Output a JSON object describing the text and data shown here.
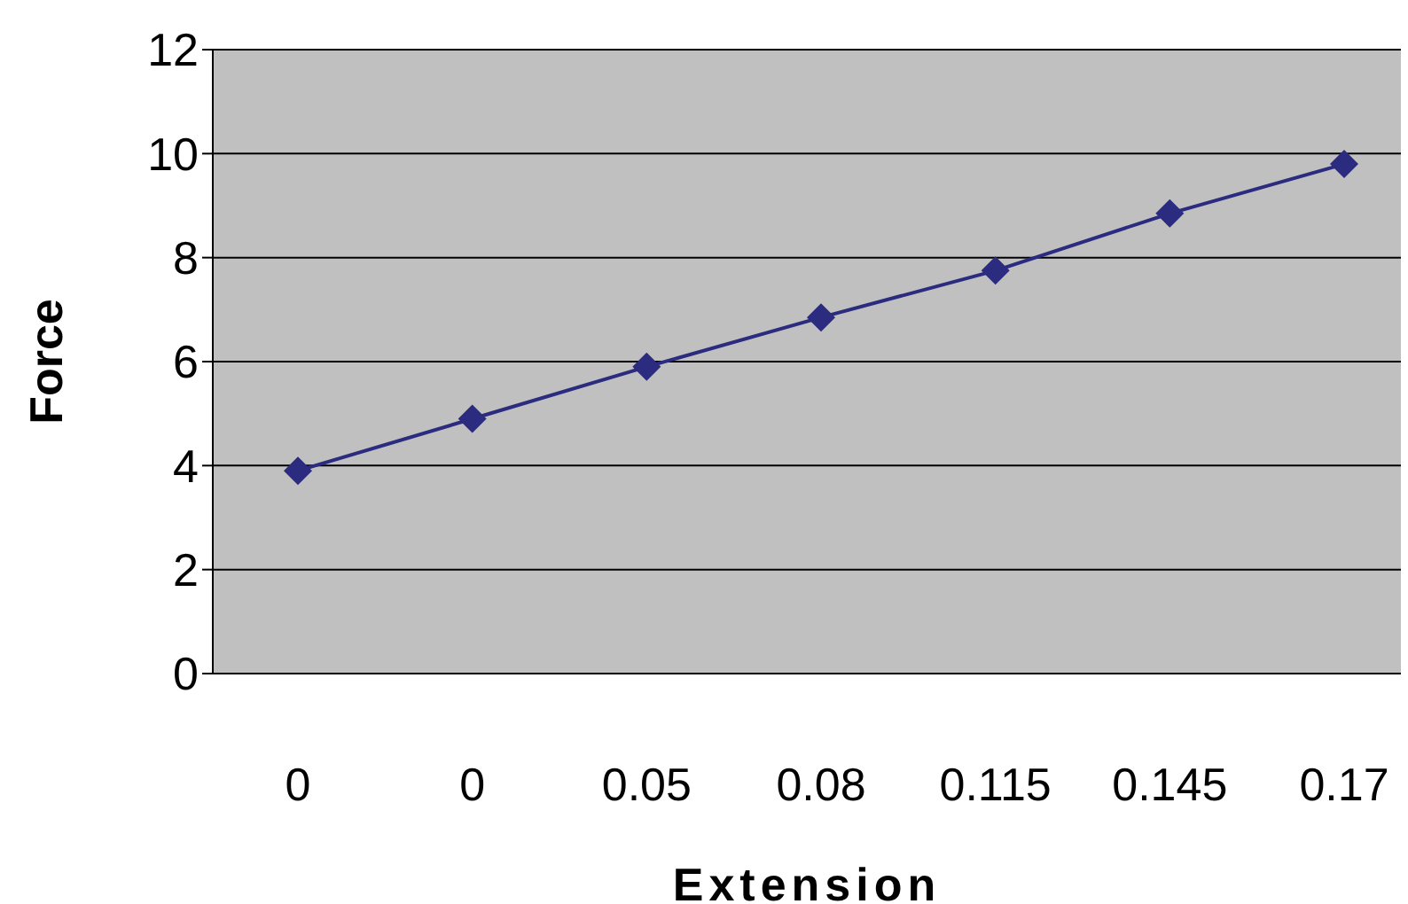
{
  "chart_data": {
    "type": "line",
    "xlabel": "Extension",
    "ylabel": "Force",
    "categories": [
      "0",
      "0",
      "0.05",
      "0.08",
      "0.115",
      "0.145",
      "0.17"
    ],
    "series": [
      {
        "color": "#2b2b7f",
        "values": [
          3.9,
          4.9,
          5.9,
          6.85,
          7.75,
          8.85,
          9.8
        ]
      }
    ],
    "ylim": [
      0,
      12
    ],
    "yticks": [
      0,
      2,
      4,
      6,
      8,
      10,
      12
    ],
    "grid": "y",
    "legend": false,
    "marker": "diamond",
    "line_style": "solid"
  }
}
